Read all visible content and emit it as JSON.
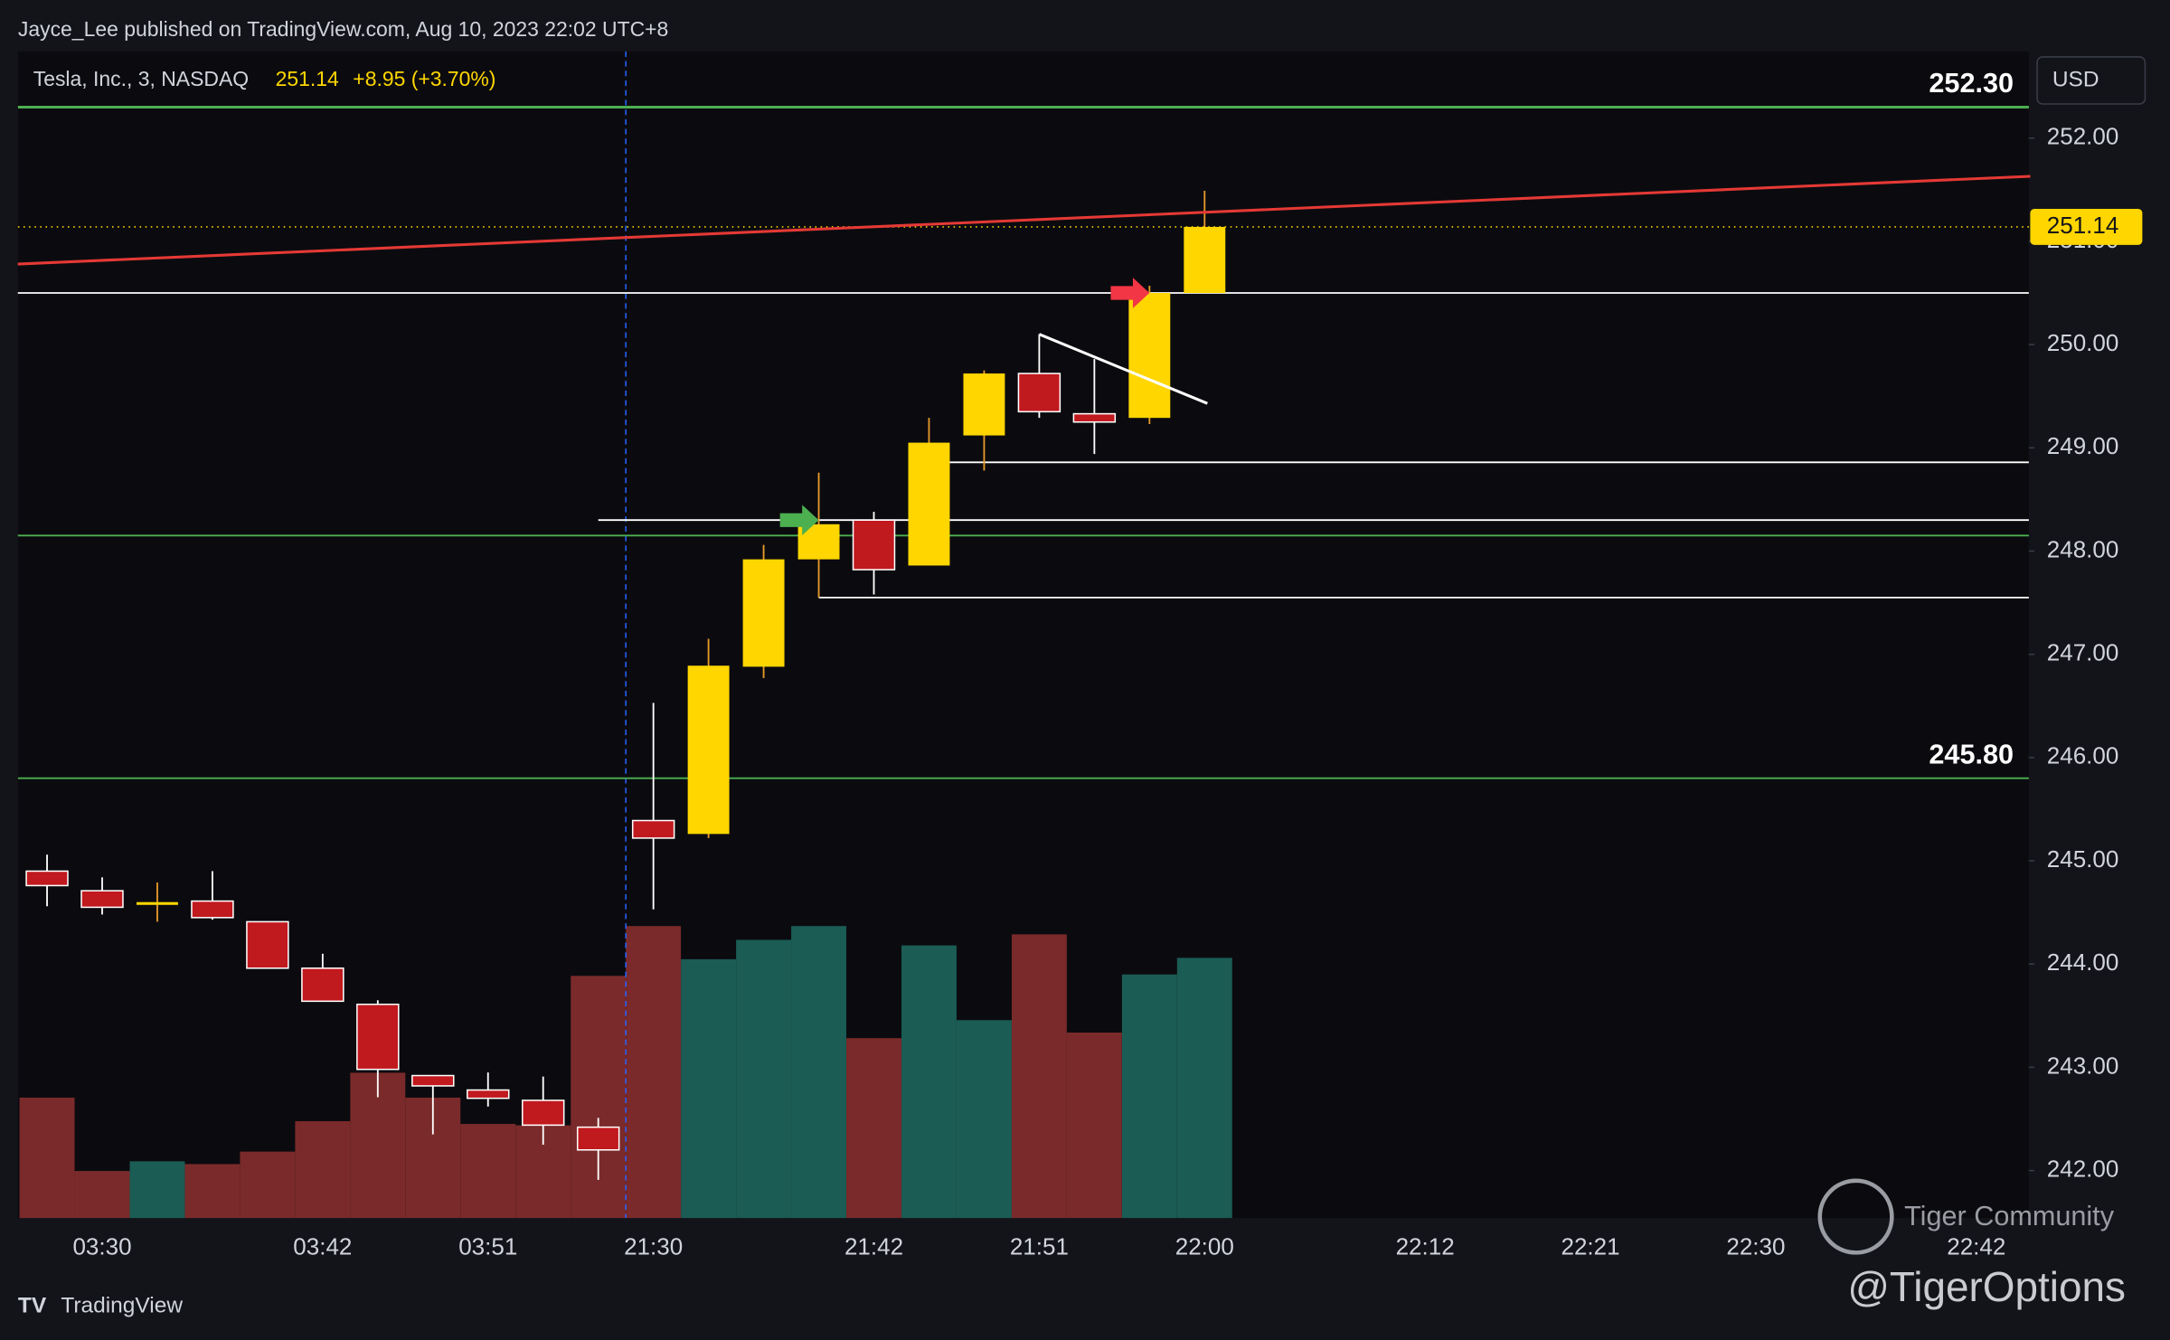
{
  "chart_data": {
    "type": "candlestick",
    "header": "Jayce_Lee published on TradingView.com, Aug 10, 2023 22:02 UTC+8",
    "symbol": "Tesla, Inc., 3, NASDAQ",
    "last": "251.14",
    "change": "+8.95 (+3.70%)",
    "currency": "USD",
    "brand": "TradingView",
    "watermark": "Tiger Community",
    "handle": "@TigerOptions",
    "categories": [
      null,
      "03:30",
      null,
      null,
      null,
      "03:42",
      null,
      null,
      "03:51",
      null,
      null,
      "21:30",
      null,
      null,
      null,
      "21:42",
      null,
      null,
      "21:51",
      null,
      null,
      "22:00",
      null,
      null,
      null,
      "22:12",
      null,
      null,
      "22:21",
      null,
      null,
      "22:30",
      null,
      null,
      null,
      "22:42"
    ],
    "open": [
      244.9,
      244.71,
      244.6,
      244.61,
      244.41,
      243.96,
      243.61,
      242.92,
      242.78,
      242.68,
      242.42,
      245.39,
      245.26,
      246.88,
      247.92,
      248.3,
      247.86,
      249.12,
      249.72,
      249.33,
      249.29,
      250.5,
      null,
      null,
      null,
      null,
      null,
      null,
      null,
      null,
      null,
      null,
      null,
      null,
      null,
      null
    ],
    "high": [
      245.06,
      244.84,
      244.79,
      244.9,
      244.41,
      244.1,
      243.65,
      242.92,
      242.95,
      242.91,
      242.51,
      246.53,
      247.15,
      248.06,
      248.76,
      248.38,
      249.29,
      249.75,
      250.1,
      249.86,
      250.57,
      251.49,
      null,
      null,
      null,
      null,
      null,
      null,
      null,
      null,
      null,
      null,
      null,
      null,
      null,
      null
    ],
    "low": [
      244.56,
      244.48,
      244.41,
      244.43,
      243.96,
      243.64,
      242.71,
      242.35,
      242.62,
      242.25,
      241.91,
      244.53,
      245.22,
      246.77,
      247.55,
      247.58,
      247.86,
      248.78,
      249.29,
      248.94,
      249.23,
      250.5,
      null,
      null,
      null,
      null,
      null,
      null,
      null,
      null,
      null,
      null,
      null,
      null,
      null,
      null
    ],
    "close": [
      244.76,
      244.55,
      244.6,
      244.45,
      243.96,
      243.64,
      242.98,
      242.82,
      242.7,
      242.44,
      242.2,
      245.22,
      246.89,
      247.92,
      248.26,
      247.82,
      249.05,
      249.72,
      249.35,
      249.25,
      250.5,
      251.14,
      null,
      null,
      null,
      null,
      null,
      null,
      null,
      null,
      null,
      null,
      null,
      null,
      null,
      null
    ],
    "volume": [
      87,
      34,
      41,
      39,
      48,
      70,
      105,
      87,
      68,
      67,
      175,
      211,
      187,
      201,
      211,
      130,
      197,
      143,
      205,
      134,
      176,
      188,
      null,
      null,
      null,
      null,
      null,
      null,
      null,
      null,
      null,
      null,
      null,
      null,
      null,
      null
    ],
    "volume_lim": [
      0,
      843
    ],
    "up_color": "#ffd600",
    "down_color": "#c0191e",
    "volume_up_color": "#1b5c55",
    "volume_down_color": "#7a2a2a",
    "ylim": [
      241.54,
      252.84
    ],
    "yticks": [
      {
        "value": 242,
        "label": "242.00"
      },
      {
        "value": 243,
        "label": "243.00"
      },
      {
        "value": 244,
        "label": "244.00"
      },
      {
        "value": 245,
        "label": "245.00"
      },
      {
        "value": 246,
        "label": "246.00"
      },
      {
        "value": 247,
        "label": "247.00"
      },
      {
        "value": 248,
        "label": "248.00"
      },
      {
        "value": 249,
        "label": "249.00"
      },
      {
        "value": 250,
        "label": "250.00"
      },
      {
        "value": 251,
        "label": "251.00"
      },
      {
        "value": 252,
        "label": "252.00"
      }
    ],
    "levels": [
      {
        "value": 252.3,
        "label": "252.30",
        "color": "#4caf50"
      },
      {
        "value": 245.8,
        "label": "245.80",
        "color": "#4caf50"
      }
    ],
    "hlines": [
      {
        "value": 248.15,
        "color": "#4caf50",
        "from": -0.53
      },
      {
        "value": 250.5,
        "color": "#ffffff",
        "from": -0.53
      },
      {
        "value": 248.86,
        "color": "#ffffff",
        "from": 16
      },
      {
        "value": 248.3,
        "color": "#ffffff",
        "from": 10
      },
      {
        "value": 247.55,
        "color": "#ffffff",
        "from": 14
      }
    ],
    "trendlines": [
      {
        "x": [
          -0.53,
          35.98
        ],
        "y": [
          250.78,
          251.63
        ],
        "color": "#e53935"
      },
      {
        "x": [
          18,
          21.05
        ],
        "y": [
          250.1,
          249.43
        ],
        "color": "#ffffff"
      }
    ],
    "arrows": [
      {
        "x": 14,
        "y": 248.3,
        "color": "#4caf50"
      },
      {
        "x": 20,
        "y": 250.5,
        "color": "#f23645"
      }
    ],
    "session_break": 10.5
  }
}
